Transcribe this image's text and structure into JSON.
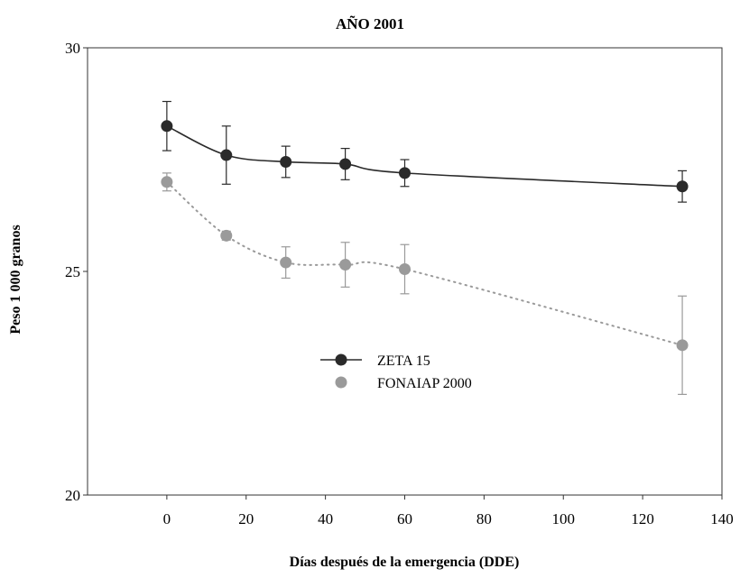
{
  "chart_data": {
    "type": "line",
    "title": "AÑO 2001",
    "xlabel": "Días después de la emergencia (DDE)",
    "ylabel": "Peso 1 000 granos",
    "xlim": [
      -20,
      140
    ],
    "ylim": [
      20,
      30
    ],
    "xticks": [
      0,
      20,
      40,
      60,
      80,
      100,
      120,
      140
    ],
    "yticks": [
      20,
      25,
      30
    ],
    "grid": false,
    "legend_position": "center",
    "series": [
      {
        "name": "ZETA 15",
        "color": "#2a2a2a",
        "line_style": "solid",
        "x": [
          0,
          15,
          30,
          45,
          60,
          130
        ],
        "y": [
          28.25,
          27.6,
          27.45,
          27.4,
          27.2,
          26.9
        ],
        "err": [
          0.55,
          0.65,
          0.35,
          0.35,
          0.3,
          0.35
        ]
      },
      {
        "name": "FONAIAP 2000",
        "color": "#9a9a9a",
        "line_style": "dotted",
        "x": [
          0,
          15,
          30,
          45,
          60,
          130
        ],
        "y": [
          27.0,
          25.8,
          25.2,
          25.15,
          25.05,
          23.35
        ],
        "err": [
          0.2,
          0.1,
          0.35,
          0.5,
          0.55,
          1.1
        ]
      }
    ]
  }
}
